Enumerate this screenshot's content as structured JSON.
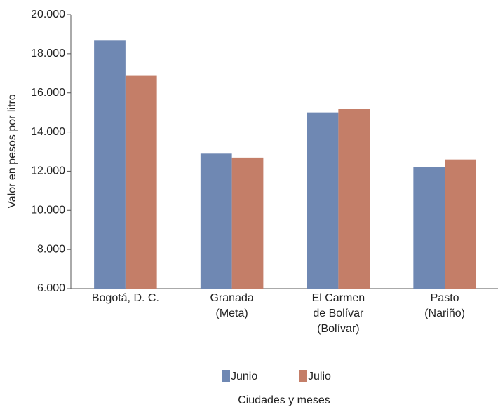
{
  "chart_data": {
    "type": "bar",
    "y_label": "Valor en pesos por litro",
    "x_label": "Ciudades y meses",
    "categories": [
      "Bogotá, D. C.",
      "Granada\n(Meta)",
      "El Carmen\nde Bolívar\n(Bolívar)",
      "Pasto\n(Nariño)"
    ],
    "series": [
      {
        "name": "Junio",
        "color": "#6f88b3",
        "values": [
          18700,
          12900,
          15000,
          12200
        ]
      },
      {
        "name": "Julio",
        "color": "#c47e68",
        "values": [
          16900,
          12700,
          15200,
          12600
        ]
      }
    ],
    "ylim": [
      6000,
      20000
    ],
    "yticks": [
      {
        "value": 6000,
        "label": "6.000"
      },
      {
        "value": 8000,
        "label": "8.000"
      },
      {
        "value": 10000,
        "label": "10.000"
      },
      {
        "value": 12000,
        "label": "12.000"
      },
      {
        "value": 14000,
        "label": "14.000"
      },
      {
        "value": 16000,
        "label": "16.000"
      },
      {
        "value": 18000,
        "label": "18.000"
      },
      {
        "value": 20000,
        "label": "20.000"
      }
    ],
    "grid": false,
    "legend": "bottom"
  }
}
